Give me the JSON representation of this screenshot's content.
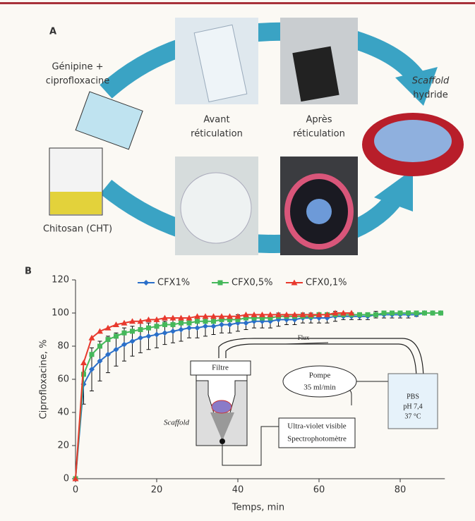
{
  "panel_a": {
    "label": "A",
    "reagent_line1": "Génipine +",
    "reagent_line2": "ciprofloxacine",
    "before_line1": "Avant",
    "before_line2": "réticulation",
    "after_line1": "Après",
    "after_line2": "réticulation",
    "scaffold_line1": "Scaffold",
    "scaffold_line2": "hydride",
    "chitosan": "Chitosan (CHT)"
  },
  "panel_b": {
    "label": "B"
  },
  "inset": {
    "filter": "Filtre",
    "flux": "Flux",
    "pump_line1": "Pompe",
    "pump_line2": "35 ml/min",
    "pbs_line1": "PBS",
    "pbs_line2": "pH 7,4",
    "pbs_line3": "37 °C",
    "scaffold": "Scaffold",
    "spectro_line1": "Ultra-violet visible",
    "spectro_line2": "Spectrophotomètre"
  },
  "chart_data": {
    "type": "line",
    "xlabel": "Temps, min",
    "ylabel": "Ciprofloxacine, %",
    "x": [
      0,
      2,
      4,
      6,
      8,
      10,
      12,
      14,
      16,
      18,
      20,
      22,
      24,
      26,
      28,
      30,
      32,
      34,
      36,
      38,
      40,
      42,
      44,
      46,
      48,
      50,
      52,
      54,
      56,
      58,
      60,
      62,
      64,
      66,
      68,
      70,
      72,
      74,
      76,
      78,
      80,
      82,
      84,
      86,
      88,
      90
    ],
    "series": [
      {
        "name": "CFX1%",
        "color": "#2a6fc9",
        "marker": "diamond",
        "values": [
          0,
          57,
          66,
          71,
          75,
          78,
          81,
          83,
          85,
          86,
          87,
          88,
          89,
          90,
          91,
          91,
          92,
          92,
          93,
          93,
          94,
          94,
          95,
          95,
          95,
          96,
          96,
          96,
          97,
          97,
          97,
          97,
          98,
          98,
          98,
          98,
          98,
          99,
          99,
          99,
          99,
          99,
          99,
          100,
          100,
          100
        ],
        "errors": [
          0,
          12,
          13,
          12,
          11,
          10,
          10,
          9,
          9,
          8,
          8,
          7,
          7,
          7,
          6,
          6,
          6,
          5,
          5,
          5,
          5,
          4,
          4,
          4,
          4,
          4,
          3,
          3,
          3,
          3,
          3,
          3,
          3,
          2,
          2,
          2,
          2,
          2,
          2,
          2,
          2,
          2,
          1,
          1,
          1,
          1
        ]
      },
      {
        "name": "CFX0,5%",
        "color": "#45b85a",
        "marker": "square",
        "values": [
          0,
          63,
          75,
          80,
          84,
          86,
          88,
          89,
          90,
          91,
          92,
          93,
          93,
          94,
          94,
          95,
          95,
          95,
          96,
          96,
          96,
          97,
          97,
          97,
          97,
          98,
          98,
          98,
          98,
          98,
          99,
          99,
          99,
          99,
          99,
          99,
          99,
          99,
          100,
          100,
          100,
          100,
          100,
          100,
          100,
          100
        ]
      },
      {
        "name": "CFX0,1%",
        "color": "#e8392d",
        "marker": "triangle",
        "values": [
          0,
          70,
          85,
          89,
          91,
          93,
          94,
          95,
          95,
          96,
          96,
          97,
          97,
          97,
          97,
          98,
          98,
          98,
          98,
          98,
          98,
          99,
          99,
          99,
          99,
          99,
          99,
          99,
          99,
          99,
          99,
          99,
          100,
          100,
          100,
          null,
          null,
          null,
          null,
          null,
          null,
          null,
          null,
          null,
          null,
          null
        ]
      }
    ],
    "xlim": [
      0,
      91
    ],
    "ylim": [
      0,
      120
    ],
    "xticks": [
      0,
      20,
      40,
      60,
      80
    ],
    "yticks": [
      0,
      20,
      40,
      60,
      80,
      100,
      120
    ],
    "legend": "top"
  }
}
